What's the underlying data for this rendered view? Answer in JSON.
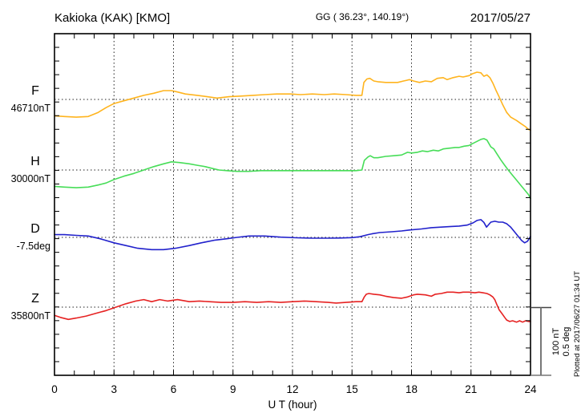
{
  "header": {
    "station": "Kakioka (KAK)  [KMO]",
    "coords": "GG ( 36.23°, 140.19°)",
    "date": "2017/05/27"
  },
  "xaxis": {
    "label": "U T (hour)",
    "tick_labels": [
      0,
      3,
      6,
      9,
      12,
      15,
      18,
      21,
      24
    ],
    "grid_hours": [
      3,
      6,
      9,
      12,
      15,
      18,
      21
    ],
    "minor_step_hours": 1,
    "range": [
      0,
      24
    ]
  },
  "scalebar": {
    "label_nt": "100 nT",
    "label_deg": "0.5 deg"
  },
  "plotted_at": "Plotted at 2017/06/27 01:34 UT",
  "colors": {
    "F": "#FFB41E",
    "H": "#47DD58",
    "D": "#2222CC",
    "Z": "#E62222",
    "grid": "#222222",
    "frame": "#000000",
    "scalebar": "#777777"
  },
  "chart_data": {
    "type": "line",
    "title": "Kakioka (KAK) [KMO] magnetogram 2017/05/27",
    "xlabel": "U T (hour)",
    "xlim": [
      0,
      24
    ],
    "grid": "dotted 3-hour vertical lines and per-component baselines",
    "legend_position": "left-margin component labels",
    "scale": {
      "nT_per_division": 100,
      "deg_per_division": 0.5
    },
    "series": [
      {
        "id": "F",
        "label": "F",
        "unit": "nT",
        "baseline_label": "46710nT",
        "baseline_value": 46710,
        "scale_per_bar": 100,
        "points": [
          [
            0,
            46686
          ],
          [
            0.5,
            46685
          ],
          [
            1.1,
            46684
          ],
          [
            1.7,
            46685
          ],
          [
            2.2,
            46691
          ],
          [
            2.6,
            46698
          ],
          [
            3.0,
            46704
          ],
          [
            3.5,
            46708
          ],
          [
            4.0,
            46712
          ],
          [
            4.5,
            46716
          ],
          [
            5.0,
            46719
          ],
          [
            5.5,
            46723
          ],
          [
            5.9,
            46723
          ],
          [
            6.2,
            46721
          ],
          [
            6.6,
            46718
          ],
          [
            7.2,
            46716
          ],
          [
            7.7,
            46714
          ],
          [
            8.2,
            46712
          ],
          [
            8.8,
            46714
          ],
          [
            9.4,
            46715
          ],
          [
            10.0,
            46716
          ],
          [
            10.6,
            46717
          ],
          [
            11.2,
            46718
          ],
          [
            11.9,
            46718
          ],
          [
            12.4,
            46717
          ],
          [
            13.0,
            46718
          ],
          [
            13.6,
            46717
          ],
          [
            14.1,
            46718
          ],
          [
            14.7,
            46717
          ],
          [
            15.2,
            46716
          ],
          [
            15.5,
            46716
          ],
          [
            15.6,
            46735
          ],
          [
            15.75,
            46740
          ],
          [
            15.9,
            46741
          ],
          [
            16.1,
            46737
          ],
          [
            16.3,
            46736
          ],
          [
            16.7,
            46735
          ],
          [
            17.0,
            46735
          ],
          [
            17.3,
            46735
          ],
          [
            17.6,
            46737
          ],
          [
            17.9,
            46739
          ],
          [
            18.1,
            46737
          ],
          [
            18.4,
            46735
          ],
          [
            18.7,
            46737
          ],
          [
            19.0,
            46736
          ],
          [
            19.3,
            46741
          ],
          [
            19.6,
            46742
          ],
          [
            19.8,
            46739
          ],
          [
            20.1,
            46742
          ],
          [
            20.4,
            46744
          ],
          [
            20.6,
            46743
          ],
          [
            20.9,
            46745
          ],
          [
            21.1,
            46748
          ],
          [
            21.3,
            46750
          ],
          [
            21.5,
            46749
          ],
          [
            21.65,
            46744
          ],
          [
            21.8,
            46746
          ],
          [
            21.95,
            46742
          ],
          [
            22.1,
            46734
          ],
          [
            22.25,
            46724
          ],
          [
            22.4,
            46715
          ],
          [
            22.6,
            46702
          ],
          [
            22.8,
            46691
          ],
          [
            23.0,
            46684
          ],
          [
            23.3,
            46679
          ],
          [
            23.5,
            46675
          ],
          [
            23.75,
            46670
          ],
          [
            23.9,
            46666
          ],
          [
            24.0,
            46665
          ]
        ]
      },
      {
        "id": "H",
        "label": "H",
        "unit": "nT",
        "baseline_label": "30000nT",
        "baseline_value": 30000,
        "scale_per_bar": 100,
        "points": [
          [
            0,
            29976
          ],
          [
            0.5,
            29975
          ],
          [
            1.1,
            29974
          ],
          [
            1.7,
            29975
          ],
          [
            2.2,
            29978
          ],
          [
            2.6,
            29981
          ],
          [
            3.0,
            29986
          ],
          [
            3.5,
            29991
          ],
          [
            4.0,
            29995
          ],
          [
            4.5,
            30000
          ],
          [
            5.0,
            30005
          ],
          [
            5.5,
            30009
          ],
          [
            5.9,
            30012
          ],
          [
            6.3,
            30011
          ],
          [
            6.8,
            30009
          ],
          [
            7.2,
            30007
          ],
          [
            7.6,
            30005
          ],
          [
            8.0,
            30002
          ],
          [
            8.3,
            30000
          ],
          [
            8.7,
            29999
          ],
          [
            9.2,
            29998
          ],
          [
            9.8,
            29998
          ],
          [
            10.4,
            29999
          ],
          [
            11.0,
            29999
          ],
          [
            11.7,
            29999
          ],
          [
            12.3,
            29999
          ],
          [
            12.9,
            29999
          ],
          [
            13.5,
            29999
          ],
          [
            14.1,
            29999
          ],
          [
            14.6,
            29999
          ],
          [
            15.2,
            29999
          ],
          [
            15.5,
            30000
          ],
          [
            15.62,
            30014
          ],
          [
            15.8,
            30019
          ],
          [
            15.92,
            30021
          ],
          [
            16.1,
            30018
          ],
          [
            16.3,
            30018
          ],
          [
            16.7,
            30020
          ],
          [
            17.1,
            30021
          ],
          [
            17.5,
            30022
          ],
          [
            17.8,
            30026
          ],
          [
            18.0,
            30025
          ],
          [
            18.3,
            30026
          ],
          [
            18.55,
            30028
          ],
          [
            18.8,
            30027
          ],
          [
            19.1,
            30029
          ],
          [
            19.35,
            30028
          ],
          [
            19.6,
            30031
          ],
          [
            19.9,
            30032
          ],
          [
            20.2,
            30033
          ],
          [
            20.4,
            30033
          ],
          [
            20.65,
            30035
          ],
          [
            20.9,
            30036
          ],
          [
            21.1,
            30039
          ],
          [
            21.3,
            30042
          ],
          [
            21.5,
            30045
          ],
          [
            21.65,
            30046
          ],
          [
            21.8,
            30044
          ],
          [
            21.9,
            30039
          ],
          [
            22.0,
            30034
          ],
          [
            22.15,
            30031
          ],
          [
            22.3,
            30024
          ],
          [
            22.5,
            30015
          ],
          [
            22.7,
            30007
          ],
          [
            22.9,
            29999
          ],
          [
            23.1,
            29992
          ],
          [
            23.3,
            29985
          ],
          [
            23.5,
            29978
          ],
          [
            23.7,
            29971
          ],
          [
            23.9,
            29964
          ],
          [
            24.0,
            29958
          ]
        ]
      },
      {
        "id": "D",
        "label": "D",
        "unit": "deg",
        "baseline_label": "-7.5deg",
        "baseline_value": -7.5,
        "scale_per_bar": 0.5,
        "points": [
          [
            0,
            -7.48
          ],
          [
            0.5,
            -7.48
          ],
          [
            1.1,
            -7.485
          ],
          [
            1.7,
            -7.49
          ],
          [
            2.3,
            -7.51
          ],
          [
            3.0,
            -7.54
          ],
          [
            3.6,
            -7.56
          ],
          [
            4.2,
            -7.58
          ],
          [
            4.9,
            -7.59
          ],
          [
            5.5,
            -7.59
          ],
          [
            6.1,
            -7.58
          ],
          [
            6.8,
            -7.56
          ],
          [
            7.4,
            -7.54
          ],
          [
            8.1,
            -7.52
          ],
          [
            8.7,
            -7.51
          ],
          [
            9.2,
            -7.5
          ],
          [
            9.8,
            -7.49
          ],
          [
            10.6,
            -7.49
          ],
          [
            11.4,
            -7.498
          ],
          [
            12.2,
            -7.503
          ],
          [
            13.0,
            -7.506
          ],
          [
            13.8,
            -7.506
          ],
          [
            14.4,
            -7.505
          ],
          [
            15.0,
            -7.502
          ],
          [
            15.4,
            -7.495
          ],
          [
            15.8,
            -7.48
          ],
          [
            16.0,
            -7.474
          ],
          [
            16.4,
            -7.465
          ],
          [
            17.0,
            -7.459
          ],
          [
            17.5,
            -7.453
          ],
          [
            17.9,
            -7.446
          ],
          [
            18.5,
            -7.438
          ],
          [
            19.0,
            -7.429
          ],
          [
            19.5,
            -7.425
          ],
          [
            20.0,
            -7.42
          ],
          [
            20.4,
            -7.417
          ],
          [
            20.8,
            -7.41
          ],
          [
            21.1,
            -7.394
          ],
          [
            21.3,
            -7.376
          ],
          [
            21.5,
            -7.37
          ],
          [
            21.65,
            -7.39
          ],
          [
            21.78,
            -7.425
          ],
          [
            21.9,
            -7.405
          ],
          [
            22.0,
            -7.388
          ],
          [
            22.2,
            -7.382
          ],
          [
            22.4,
            -7.388
          ],
          [
            22.6,
            -7.388
          ],
          [
            22.8,
            -7.4
          ],
          [
            23.0,
            -7.425
          ],
          [
            23.2,
            -7.46
          ],
          [
            23.4,
            -7.495
          ],
          [
            23.55,
            -7.523
          ],
          [
            23.7,
            -7.54
          ],
          [
            23.85,
            -7.528
          ],
          [
            23.95,
            -7.505
          ],
          [
            24.0,
            -7.494
          ]
        ]
      },
      {
        "id": "Z",
        "label": "Z",
        "unit": "nT",
        "baseline_label": "35800nT",
        "baseline_value": 35800,
        "scale_per_bar": 100,
        "points": [
          [
            0,
            35788
          ],
          [
            0.3,
            35785
          ],
          [
            0.7,
            35782
          ],
          [
            1.1,
            35784
          ],
          [
            1.6,
            35787
          ],
          [
            2.1,
            35791
          ],
          [
            2.6,
            35795
          ],
          [
            3.1,
            35800
          ],
          [
            3.6,
            35805
          ],
          [
            4.1,
            35809
          ],
          [
            4.5,
            35811
          ],
          [
            4.9,
            35808
          ],
          [
            5.3,
            35811
          ],
          [
            5.7,
            35809
          ],
          [
            6.2,
            35811
          ],
          [
            6.8,
            35808
          ],
          [
            7.3,
            35809
          ],
          [
            7.8,
            35808
          ],
          [
            8.4,
            35807
          ],
          [
            9.0,
            35807
          ],
          [
            9.6,
            35808
          ],
          [
            10.2,
            35807
          ],
          [
            10.8,
            35808
          ],
          [
            11.4,
            35807
          ],
          [
            12.0,
            35808
          ],
          [
            12.6,
            35809
          ],
          [
            13.2,
            35808
          ],
          [
            13.8,
            35807
          ],
          [
            14.2,
            35806
          ],
          [
            14.7,
            35807
          ],
          [
            15.2,
            35808
          ],
          [
            15.5,
            35808
          ],
          [
            15.62,
            35815
          ],
          [
            15.72,
            35819
          ],
          [
            15.85,
            35820
          ],
          [
            16.1,
            35819
          ],
          [
            16.4,
            35818
          ],
          [
            16.7,
            35816
          ],
          [
            17.1,
            35814
          ],
          [
            17.5,
            35813
          ],
          [
            17.8,
            35815
          ],
          [
            18.1,
            35818
          ],
          [
            18.3,
            35819
          ],
          [
            18.7,
            35818
          ],
          [
            19.0,
            35816
          ],
          [
            19.2,
            35819
          ],
          [
            19.5,
            35820
          ],
          [
            19.8,
            35822
          ],
          [
            20.1,
            35822
          ],
          [
            20.4,
            35821
          ],
          [
            20.6,
            35822
          ],
          [
            20.9,
            35822
          ],
          [
            21.2,
            35821
          ],
          [
            21.4,
            35822
          ],
          [
            21.6,
            35821
          ],
          [
            21.8,
            35820
          ],
          [
            21.95,
            35818
          ],
          [
            22.1,
            35815
          ],
          [
            22.2,
            35811
          ],
          [
            22.3,
            35804
          ],
          [
            22.42,
            35796
          ],
          [
            22.55,
            35791
          ],
          [
            22.7,
            35785
          ],
          [
            22.8,
            35781
          ],
          [
            22.95,
            35779
          ],
          [
            23.1,
            35780
          ],
          [
            23.3,
            35778
          ],
          [
            23.45,
            35780
          ],
          [
            23.6,
            35778
          ],
          [
            23.75,
            35780
          ],
          [
            23.9,
            35779
          ],
          [
            24.0,
            35779
          ]
        ]
      }
    ]
  }
}
